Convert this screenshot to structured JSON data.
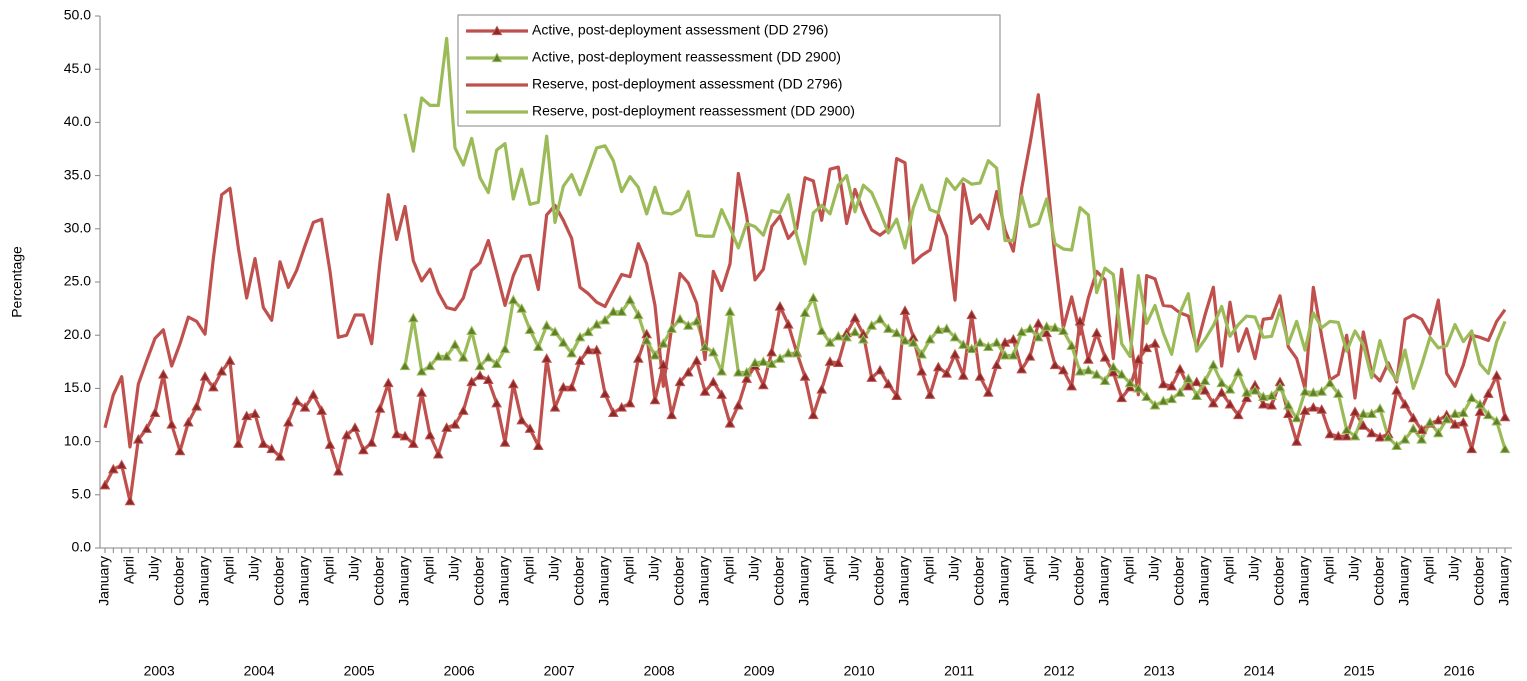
{
  "chart_data": {
    "type": "line",
    "y_label": "Percentage",
    "ylim": [
      0,
      50
    ],
    "yticks": [
      {
        "value": 0,
        "label": "0.0"
      },
      {
        "value": 5,
        "label": "5.0"
      },
      {
        "value": 10,
        "label": "10.0"
      },
      {
        "value": 15,
        "label": "15.0"
      },
      {
        "value": 20,
        "label": "20.0"
      },
      {
        "value": 25,
        "label": "25.0"
      },
      {
        "value": 30,
        "label": "30.0"
      },
      {
        "value": 35,
        "label": "35.0"
      },
      {
        "value": 40,
        "label": "40.0"
      },
      {
        "value": 45,
        "label": "45.0"
      },
      {
        "value": 50,
        "label": "50.0"
      }
    ],
    "categories": [
      "January",
      null,
      null,
      "April",
      null,
      null,
      "July",
      null,
      null,
      "October",
      null,
      null,
      "January",
      null,
      null,
      "April",
      null,
      null,
      "July",
      null,
      null,
      "October",
      null,
      null,
      "January",
      null,
      null,
      "April",
      null,
      null,
      "July",
      null,
      null,
      "October",
      null,
      null,
      "January",
      null,
      null,
      "April",
      null,
      null,
      "July",
      null,
      null,
      "October",
      null,
      null,
      "January",
      null,
      null,
      "April",
      null,
      null,
      "July",
      null,
      null,
      "October",
      null,
      null,
      "January",
      null,
      null,
      "April",
      null,
      null,
      "July",
      null,
      null,
      "October",
      null,
      null,
      "January",
      null,
      null,
      "April",
      null,
      null,
      "July",
      null,
      null,
      "October",
      null,
      null,
      "January",
      null,
      null,
      "April",
      null,
      null,
      "July",
      null,
      null,
      "October",
      null,
      null,
      "January",
      null,
      null,
      "April",
      null,
      null,
      "July",
      null,
      null,
      "October",
      null,
      null,
      "January",
      null,
      null,
      "April",
      null,
      null,
      "July",
      null,
      null,
      "October",
      null,
      null,
      "January",
      null,
      null,
      "April",
      null,
      null,
      "July",
      null,
      null,
      "October",
      null,
      null,
      "January",
      null,
      null,
      "April",
      null,
      null,
      "July",
      null,
      null,
      "October",
      null,
      null,
      "January",
      null,
      null,
      "April",
      null,
      null,
      "July",
      null,
      null,
      "October",
      null,
      null,
      "January",
      null,
      null,
      "April",
      null,
      null,
      "July",
      null,
      null,
      "October",
      null,
      null,
      "January"
    ],
    "year_labels": [
      "2003",
      "2004",
      "2005",
      "2006",
      "2007",
      "2008",
      "2009",
      "2010",
      "2011",
      "2012",
      "2013",
      "2014",
      "2015",
      "2016"
    ],
    "series": [
      {
        "name": "Active, post-deployment assessment (DD 2796)",
        "color": "#c0504d",
        "marker": "triangle",
        "marker_color": "#8b2a28",
        "values": [
          5.9,
          7.4,
          7.8,
          4.4,
          10.2,
          11.2,
          12.7,
          16.3,
          11.6,
          9.1,
          11.8,
          13.3,
          16.1,
          15.1,
          16.6,
          17.6,
          9.8,
          12.4,
          12.6,
          9.8,
          9.3,
          8.6,
          11.8,
          13.8,
          13.2,
          14.4,
          12.9,
          9.7,
          7.2,
          10.6,
          11.3,
          9.2,
          9.9,
          13.1,
          15.5,
          10.7,
          10.5,
          9.8,
          14.6,
          10.6,
          8.8,
          11.3,
          11.6,
          12.9,
          15.6,
          16.2,
          15.8,
          13.6,
          9.9,
          15.4,
          12.0,
          11.2,
          9.6,
          17.8,
          13.2,
          15.1,
          15.1,
          17.6,
          18.6,
          18.6,
          14.5,
          12.7,
          13.2,
          13.6,
          17.8,
          20.1,
          13.9,
          17.2,
          12.5,
          15.6,
          16.5,
          17.6,
          14.7,
          15.6,
          14.4,
          11.7,
          13.4,
          15.9,
          17.1,
          15.3,
          18.4,
          22.7,
          21.0,
          18.4,
          16.1,
          12.5,
          14.9,
          17.5,
          17.4,
          20.2,
          21.6,
          20.1,
          16.0,
          16.7,
          15.4,
          14.3,
          22.3,
          19.8,
          16.6,
          14.4,
          17.0,
          16.4,
          18.2,
          16.2,
          21.9,
          16.1,
          14.6,
          17.2,
          19.3,
          19.6,
          16.8,
          18.0,
          21.1,
          20.2,
          17.2,
          16.7,
          15.2,
          21.3,
          17.7,
          20.2,
          17.9,
          16.5,
          14.1,
          15.1,
          17.7,
          18.8,
          19.2,
          15.4,
          15.2,
          16.8,
          15.2,
          15.6,
          14.8,
          13.6,
          14.6,
          13.5,
          12.5,
          14.1,
          15.3,
          13.5,
          13.4,
          15.6,
          12.6,
          10.0,
          12.9,
          13.2,
          13.0,
          10.7,
          10.5,
          10.5,
          12.8,
          11.5,
          10.8,
          10.4,
          10.7,
          14.8,
          13.5,
          12.2,
          11.1,
          11.7,
          12.0,
          12.5,
          11.6,
          11.8,
          9.3,
          12.8,
          14.5,
          16.2,
          12.3
        ]
      },
      {
        "name": "Active, post-deployment reassessment (DD 2900)",
        "color": "#9bbb59",
        "marker": "triangle",
        "marker_color": "#5f7f2a",
        "values": [
          null,
          null,
          null,
          null,
          null,
          null,
          null,
          null,
          null,
          null,
          null,
          null,
          null,
          null,
          null,
          null,
          null,
          null,
          null,
          null,
          null,
          null,
          null,
          null,
          null,
          null,
          null,
          null,
          null,
          null,
          null,
          null,
          null,
          null,
          null,
          null,
          17.1,
          21.6,
          16.6,
          17.1,
          18.0,
          18.0,
          19.1,
          17.9,
          20.4,
          17.1,
          17.9,
          17.3,
          18.7,
          23.3,
          22.5,
          20.5,
          18.9,
          20.9,
          20.3,
          19.3,
          18.3,
          19.8,
          20.3,
          21.0,
          21.4,
          22.2,
          22.2,
          23.3,
          21.9,
          19.5,
          18.1,
          19.2,
          20.6,
          21.5,
          20.9,
          21.3,
          18.9,
          18.4,
          16.6,
          22.2,
          16.5,
          16.5,
          17.4,
          17.5,
          17.3,
          17.8,
          18.3,
          18.3,
          22.1,
          23.5,
          20.4,
          19.3,
          19.9,
          19.8,
          20.3,
          19.6,
          20.9,
          21.5,
          20.6,
          20.2,
          19.5,
          19.3,
          18.2,
          19.6,
          20.5,
          20.6,
          19.8,
          19.1,
          18.7,
          19.3,
          18.9,
          19.3,
          18.1,
          18.1,
          20.3,
          20.6,
          19.8,
          20.8,
          20.7,
          20.4,
          19.0,
          16.6,
          16.7,
          16.3,
          15.7,
          17.0,
          16.3,
          15.5,
          15.0,
          14.2,
          13.4,
          13.8,
          14.0,
          14.6,
          15.9,
          14.3,
          15.7,
          17.2,
          15.5,
          14.9,
          16.5,
          14.6,
          14.8,
          14.2,
          14.3,
          15.1,
          13.4,
          12.2,
          14.7,
          14.6,
          14.7,
          15.5,
          14.5,
          11.1,
          10.5,
          12.6,
          12.6,
          13.1,
          10.4,
          9.6,
          10.2,
          11.2,
          10.2,
          11.8,
          10.8,
          12.1,
          12.6,
          12.7,
          14.1,
          13.5,
          12.5,
          11.9,
          9.3
        ]
      },
      {
        "name": "Reserve, post-deployment assessment (DD 2796)",
        "color": "#c0504d",
        "values": [
          11.3,
          14.4,
          16.1,
          9.5,
          15.4,
          17.6,
          19.7,
          20.5,
          17.1,
          19.2,
          21.7,
          21.3,
          20.1,
          27.2,
          33.2,
          33.8,
          28.2,
          23.5,
          27.2,
          22.6,
          21.4,
          26.9,
          24.5,
          26.1,
          28.4,
          30.6,
          30.9,
          26.0,
          19.8,
          20.0,
          21.9,
          21.9,
          19.2,
          26.9,
          33.2,
          29.0,
          32.1,
          27.0,
          25.1,
          26.2,
          24.0,
          22.6,
          22.4,
          23.5,
          26.1,
          26.8,
          28.9,
          25.9,
          22.8,
          25.6,
          27.4,
          27.5,
          24.3,
          31.3,
          32.2,
          30.8,
          29.1,
          24.5,
          23.9,
          23.1,
          22.7,
          24.2,
          25.7,
          25.5,
          28.6,
          26.7,
          22.8,
          15.2,
          20.7,
          25.8,
          24.9,
          23.0,
          17.7,
          26.0,
          24.2,
          26.7,
          35.2,
          31.2,
          25.2,
          26.2,
          30.2,
          31.2,
          29.1,
          30.0,
          34.8,
          34.5,
          30.8,
          35.6,
          35.8,
          30.5,
          33.7,
          31.6,
          29.9,
          29.4,
          30.0,
          36.6,
          36.2,
          26.8,
          27.5,
          28.0,
          31.3,
          29.3,
          23.3,
          34.2,
          30.5,
          31.3,
          30.0,
          33.5,
          29.9,
          27.9,
          33.8,
          38.0,
          42.6,
          35.3,
          27.3,
          20.7,
          23.6,
          20.1,
          23.5,
          26.0,
          25.2,
          17.8,
          26.2,
          20.1,
          14.4,
          25.6,
          25.3,
          22.8,
          22.7,
          22.1,
          21.8,
          18.9,
          21.9,
          24.5,
          17.1,
          23.1,
          18.5,
          20.6,
          17.8,
          21.5,
          21.6,
          23.7,
          18.9,
          17.8,
          15.0,
          24.5,
          19.9,
          15.8,
          16.3,
          20.0,
          14.1,
          20.3,
          16.5,
          15.7,
          17.4,
          15.6,
          21.5,
          21.9,
          21.5,
          20.1,
          23.3,
          16.4,
          15.2,
          17.2,
          20.0,
          19.8,
          19.5,
          21.3,
          22.4
        ]
      },
      {
        "name": "Reserve, post-deployment reassessment (DD 2900)",
        "color": "#9bbb59",
        "values": [
          null,
          null,
          null,
          null,
          null,
          null,
          null,
          null,
          null,
          null,
          null,
          null,
          null,
          null,
          null,
          null,
          null,
          null,
          null,
          null,
          null,
          null,
          null,
          null,
          null,
          null,
          null,
          null,
          null,
          null,
          null,
          null,
          null,
          null,
          null,
          null,
          40.8,
          37.3,
          42.3,
          41.6,
          41.6,
          47.9,
          37.6,
          36.0,
          38.5,
          34.8,
          33.4,
          37.4,
          38.0,
          32.8,
          35.6,
          32.3,
          32.5,
          38.7,
          30.6,
          34.0,
          35.1,
          33.2,
          35.4,
          37.6,
          37.8,
          36.4,
          33.5,
          34.9,
          33.9,
          31.4,
          33.9,
          31.5,
          31.4,
          31.8,
          33.5,
          29.4,
          29.3,
          29.3,
          31.8,
          30.1,
          28.2,
          30.5,
          30.2,
          29.4,
          31.7,
          31.5,
          33.2,
          29.4,
          26.7,
          31.5,
          32.2,
          31.4,
          34.1,
          35.0,
          31.6,
          34.1,
          33.4,
          31.6,
          29.6,
          30.9,
          28.2,
          32.0,
          34.1,
          31.8,
          31.5,
          34.7,
          33.7,
          34.7,
          34.2,
          34.3,
          36.4,
          35.7,
          28.9,
          28.9,
          33.1,
          30.2,
          30.5,
          32.8,
          28.6,
          28.1,
          28.0,
          32.0,
          31.3,
          24.0,
          26.3,
          25.7,
          19.2,
          18.0,
          25.6,
          21.1,
          22.8,
          20.2,
          18.2,
          22.1,
          23.9,
          18.5,
          19.6,
          20.9,
          22.7,
          19.9,
          21.0,
          21.8,
          21.7,
          19.8,
          19.9,
          22.4,
          19.2,
          21.3,
          18.6,
          22.1,
          20.7,
          21.3,
          21.2,
          18.5,
          20.4,
          19.1,
          16.0,
          19.5,
          16.9,
          15.8,
          18.6,
          15.0,
          17.2,
          19.8,
          18.8,
          19.0,
          21.0,
          19.4,
          20.4,
          17.3,
          16.4,
          19.4,
          21.3
        ]
      }
    ]
  }
}
